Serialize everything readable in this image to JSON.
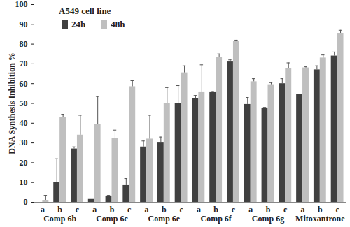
{
  "chart_data": {
    "type": "bar",
    "title": "A549 cell line",
    "y_label": "DNA Synthesis Inhibition %",
    "groups": [
      {
        "name": "Comp 6b",
        "categories": [
          "a",
          "b",
          "c"
        ]
      },
      {
        "name": "Comp 6c",
        "categories": [
          "a",
          "b",
          "c"
        ]
      },
      {
        "name": "Comp 6e",
        "categories": [
          "a",
          "b",
          "c"
        ]
      },
      {
        "name": "Comp 6f",
        "categories": [
          "a",
          "b",
          "c"
        ]
      },
      {
        "name": "Comp 6g",
        "categories": [
          "a",
          "b",
          "c"
        ]
      },
      {
        "name": "Mitoxantrone",
        "categories": [
          "a",
          "b",
          "c"
        ]
      }
    ],
    "series": [
      {
        "name": "24h",
        "color": "#404040",
        "values": [
          0,
          10,
          27,
          1.5,
          3,
          8.5,
          28,
          30,
          50,
          52.5,
          55.5,
          71,
          49.5,
          47.5,
          60,
          54.5,
          67,
          74
        ],
        "errors": [
          0,
          12,
          1,
          0,
          0.5,
          3.5,
          3,
          3,
          9,
          1.5,
          0.5,
          1,
          3.5,
          0.5,
          2.5,
          0,
          2,
          2
        ]
      },
      {
        "name": "48h",
        "color": "#bfbfbf",
        "values": [
          1,
          43,
          34,
          39.5,
          32.5,
          58.5,
          32,
          50,
          65.5,
          55.5,
          73.5,
          81.5,
          61,
          59.5,
          67.5,
          68,
          73,
          85.5
        ],
        "errors": [
          2.5,
          1.5,
          10,
          14,
          4,
          3,
          12,
          8,
          3.5,
          14,
          1.5,
          0.5,
          1.5,
          1,
          3,
          0.5,
          1.5,
          1.5
        ]
      }
    ],
    "ylim": [
      0,
      100
    ],
    "yticks": [
      0,
      10,
      20,
      30,
      40,
      50,
      60,
      70,
      80,
      90,
      100
    ],
    "grid": false,
    "legend": "top-left"
  }
}
